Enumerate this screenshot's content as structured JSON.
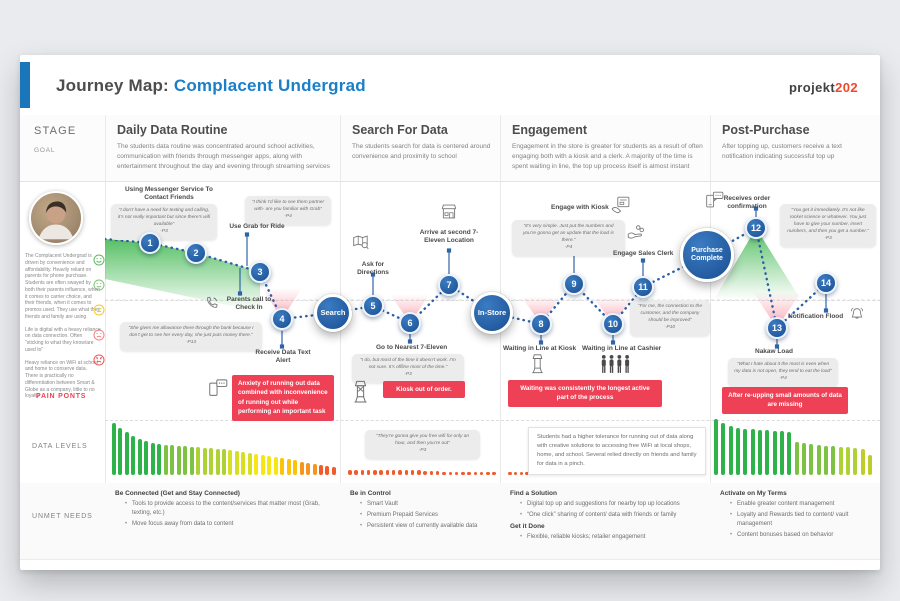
{
  "header": {
    "title_prefix": "Journey Map: ",
    "title_highlight": "Complacent Undergrad",
    "logo_black": "projekt",
    "logo_accent": "202"
  },
  "side": {
    "stage_label": "STAGE",
    "goal_label": "GOAL",
    "pain_points_label": "PAIN PONTS",
    "data_levels_label": "DATA LEVELS",
    "unmet_needs_label": "UNMET NEEDS"
  },
  "colors": {
    "accent_blue": "#1b75bb",
    "title_blue": "#1b7fc8",
    "logo_accent": "#f0492e",
    "banner_red": "#ee4155",
    "node_blue": "#1a4e92"
  },
  "stages": [
    {
      "title": "Daily Data Routine",
      "goal": "The students data routine was concentrated around school activities, communication with friends through messenger apps, along with entertainment throughout the day and evening through streaming services"
    },
    {
      "title": "Search For Data",
      "goal": "The students search for data is centered around convenience  and proximity to school"
    },
    {
      "title": "Engagement",
      "goal": "Engagement in the store is greater for students as a result of often engaging both with a kiosk and a clerk.  A majority of the time is spent waiting in line, the top up process itself is almost instant"
    },
    {
      "title": "Post-Purchase",
      "goal": "After topping up, customers receive a text notification indicating successful top up"
    }
  ],
  "persona": {
    "paragraphs": [
      "The Complacent Undergrad is driven by convenience and affordability. Heavily reliant on parents for phone purchase. Students are often swayed by both their parents influence, when it comes to carrier choice, and their friends, when it comes to promos used. They use what their friends and family are using",
      "Life is digital with a heavy reliance on data connection. Often \"sticking to what they know/are used to\"",
      "Heavy reliance on WiFi at school and home to conserve data. There is practically no differentiation between Smart & Globe as a company, little to no loyalty"
    ]
  },
  "journey": {
    "nodes": [
      {
        "num": "1",
        "label": "Using Messenger Service To Contact Friends"
      },
      {
        "num": "2",
        "label": "Use Grab for Ride"
      },
      {
        "num": "3",
        "label": "Parents call to Check In"
      },
      {
        "num": "4",
        "label": "Receive Data Text Alert"
      },
      {
        "num": "5",
        "label": "Ask for Directions"
      },
      {
        "num": "6",
        "label": "Go to Nearest 7-Eleven"
      },
      {
        "num": "7",
        "label": "Arrive at second 7-Eleven Location"
      },
      {
        "num": "8",
        "label": "Waiting in Line at Kiosk"
      },
      {
        "num": "9",
        "label": "Engage with Kiosk"
      },
      {
        "num": "10",
        "label": "Waiting in Line at Cashier"
      },
      {
        "num": "11",
        "label": "Engage Sales Clerk"
      },
      {
        "num": "12",
        "label": "Receives order confirmation"
      },
      {
        "num": "13",
        "label": "Nakaw Load"
      },
      {
        "num": "14",
        "label": "Notification Flood"
      }
    ],
    "milestones": [
      "Search",
      "In-Store",
      "Purchase Complete"
    ],
    "quotes": [
      {
        "text": "“I don’t have a need for texting and calling, it’s not really important but since there’s wifi available”",
        "by": "-P3"
      },
      {
        "text": "“I think I’d like to see them partner with- are you familiar with Grab”",
        "by": "-P4"
      },
      {
        "text": "“She gives me allowance there through the bank because I don’t get to see her every day, she just puts money there.”",
        "by": "-P13"
      },
      {
        "text": "“I do, but most of the time it doesn’t work. I’m not sure. It’s offline most of the time.”",
        "by": "-P3"
      },
      {
        "text": "“It’s very simple. Just put the numbers and you’re gonna get an update that the load is there.”",
        "by": "-P4"
      },
      {
        "text": "“For me, the connection to the customer, and the company should be improved”",
        "by": "-P10"
      },
      {
        "text": "“You get it immediately. It’s not like rocket science or whatever. You just have to give your number, insert numbers, and then you get a number.”",
        "by": "-P3"
      },
      {
        "text": "“What I hate about it the most is even when my data is not open, they tend to eat the load”",
        "by": "-P4"
      },
      {
        "text": "“They’re gonna give you free wifi for only an hour, and then you’re out”",
        "by": "-P3"
      }
    ],
    "insight": "Students had a higher tolerance for running out of data along with creative solutions to accessing free WiFi at local shops, home, and school. Several relied directly on friends and family for data in a pinch.",
    "pain_banners": [
      "Anxiety of running out data combined with inconvenience of running out while performing an important task",
      "Kiosk out of order.",
      "Waiting was consistently the longest active part of the process",
      "After re-upping small amounts of data are missing"
    ]
  },
  "data_levels": {
    "col1": {
      "heights": [
        52,
        47,
        43,
        39,
        36,
        34,
        32,
        31,
        30,
        30,
        29,
        29,
        28,
        28,
        27,
        27,
        26,
        26,
        25,
        24,
        23,
        22,
        21,
        20,
        19,
        18,
        17,
        16,
        15,
        13,
        12,
        11,
        10,
        9,
        8
      ],
      "colors": [
        "#2eb34b",
        "#2eb34b",
        "#2eb34b",
        "#2eb34b",
        "#2eb34b",
        "#2eb34b",
        "#2eb34b",
        "#2eb34b",
        "#7dc242",
        "#7dc242",
        "#7dc242",
        "#7dc242",
        "#7dc242",
        "#aed136",
        "#aed136",
        "#aed136",
        "#aed136",
        "#aed136",
        "#d7df23",
        "#d7df23",
        "#d7df23",
        "#d7df23",
        "#f5e614",
        "#f5e614",
        "#f5e614",
        "#f5e614",
        "#fcc30b",
        "#fcc30b",
        "#fcc30b",
        "#f7941d",
        "#f7941d",
        "#f7941d",
        "#f15a29",
        "#f15a29",
        "#f15a29"
      ]
    },
    "col2": {
      "heights": [
        5,
        5,
        5,
        5,
        5,
        5,
        5,
        5,
        5,
        5,
        5,
        5,
        4,
        4,
        4,
        3,
        3,
        3,
        3,
        3,
        3,
        3,
        3,
        3
      ],
      "color": "#f15a29"
    },
    "col3": {
      "heights": [
        3,
        3,
        3,
        3,
        3,
        3,
        3,
        3,
        3,
        3,
        3,
        3,
        3,
        3,
        3,
        3,
        3,
        3,
        3,
        3,
        3,
        3,
        3,
        3,
        3,
        3,
        3,
        3,
        3,
        3,
        3,
        3,
        3,
        3
      ],
      "color": "#f15a29"
    },
    "col4": {
      "heights": [
        56,
        52,
        49,
        47,
        46,
        46,
        45,
        45,
        44,
        44,
        43,
        33,
        32,
        31,
        30,
        29,
        29,
        28,
        28,
        27,
        26,
        20
      ],
      "colors": [
        "#2eb34b",
        "#2eb34b",
        "#2eb34b",
        "#2eb34b",
        "#2eb34b",
        "#2eb34b",
        "#2eb34b",
        "#2eb34b",
        "#2eb34b",
        "#2eb34b",
        "#2eb34b",
        "#7dc242",
        "#7dc242",
        "#7dc242",
        "#7dc242",
        "#7dc242",
        "#7dc242",
        "#aed136",
        "#aed136",
        "#aed136",
        "#bfcc2a",
        "#bfcc2a"
      ]
    }
  },
  "unmet_needs": [
    {
      "sections": [
        {
          "header": "Be Connected (Get and Stay Connected)",
          "bullets": [
            "Tools to provide access to the content/services that matter most (Grab, texting, etc.)",
            "Move focus away from data to content"
          ]
        }
      ]
    },
    {
      "sections": [
        {
          "header": "Be in Control",
          "bullets": [
            "Smart Vault",
            "Premium Prepaid Services",
            "Persistent view of currently available data"
          ]
        }
      ]
    },
    {
      "sections": [
        {
          "header": "Find a Solution",
          "bullets": [
            "Digital top up and suggestions for nearby top up locations",
            "“One click” sharing of content/ data with friends or family"
          ]
        },
        {
          "header": "Get it Done",
          "bullets": [
            "Flexible, reliable kiosks; retailer engagement"
          ]
        }
      ]
    },
    {
      "sections": [
        {
          "header": "Activate on My Terms",
          "bullets": [
            "Enable greater content management",
            "Loyalty and Rewards tied to content/ vault management",
            "Content bonuses based on behavior"
          ]
        }
      ]
    }
  ]
}
